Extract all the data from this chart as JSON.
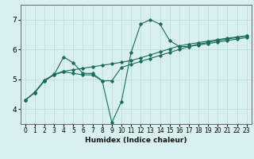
{
  "xlabel": "Humidex (Indice chaleur)",
  "background_color": "#d8f0f0",
  "line_color": "#1a6b5a",
  "xlim": [
    -0.5,
    23.5
  ],
  "ylim": [
    3.5,
    7.5
  ],
  "xticks": [
    0,
    1,
    2,
    3,
    4,
    5,
    6,
    7,
    8,
    9,
    10,
    11,
    12,
    13,
    14,
    15,
    16,
    17,
    18,
    19,
    20,
    21,
    22,
    23
  ],
  "yticks": [
    4,
    5,
    6,
    7
  ],
  "grid_color": "#b8dada",
  "line1_x": [
    0,
    1,
    2,
    3,
    4,
    5,
    6,
    7,
    8,
    9,
    10,
    11,
    12,
    13,
    14,
    15,
    16,
    17,
    18,
    19,
    20,
    21,
    22,
    23
  ],
  "line1_y": [
    4.3,
    4.55,
    4.95,
    5.15,
    5.75,
    5.55,
    5.2,
    5.2,
    4.95,
    3.55,
    4.25,
    5.9,
    6.85,
    7.0,
    6.85,
    6.3,
    6.1,
    6.1,
    6.15,
    6.2,
    6.25,
    6.3,
    6.35,
    6.4
  ],
  "line2_x": [
    0,
    1,
    2,
    3,
    4,
    5,
    6,
    7,
    8,
    9,
    10,
    11,
    12,
    13,
    14,
    15,
    16,
    17,
    18,
    19,
    20,
    21,
    22,
    23
  ],
  "line2_y": [
    4.3,
    4.55,
    4.95,
    5.15,
    5.25,
    5.2,
    5.15,
    5.15,
    4.95,
    4.95,
    5.4,
    5.5,
    5.6,
    5.7,
    5.8,
    5.9,
    6.0,
    6.1,
    6.18,
    6.24,
    6.3,
    6.35,
    6.4,
    6.45
  ],
  "line3_x": [
    0,
    1,
    2,
    3,
    4,
    5,
    6,
    7,
    8,
    9,
    10,
    11,
    12,
    13,
    14,
    15,
    16,
    17,
    18,
    19,
    20,
    21,
    22,
    23
  ],
  "line3_y": [
    4.3,
    4.57,
    4.97,
    5.17,
    5.27,
    5.32,
    5.37,
    5.42,
    5.47,
    5.52,
    5.57,
    5.63,
    5.72,
    5.82,
    5.92,
    6.02,
    6.12,
    6.18,
    6.23,
    6.28,
    6.33,
    6.38,
    6.42,
    6.46
  ]
}
